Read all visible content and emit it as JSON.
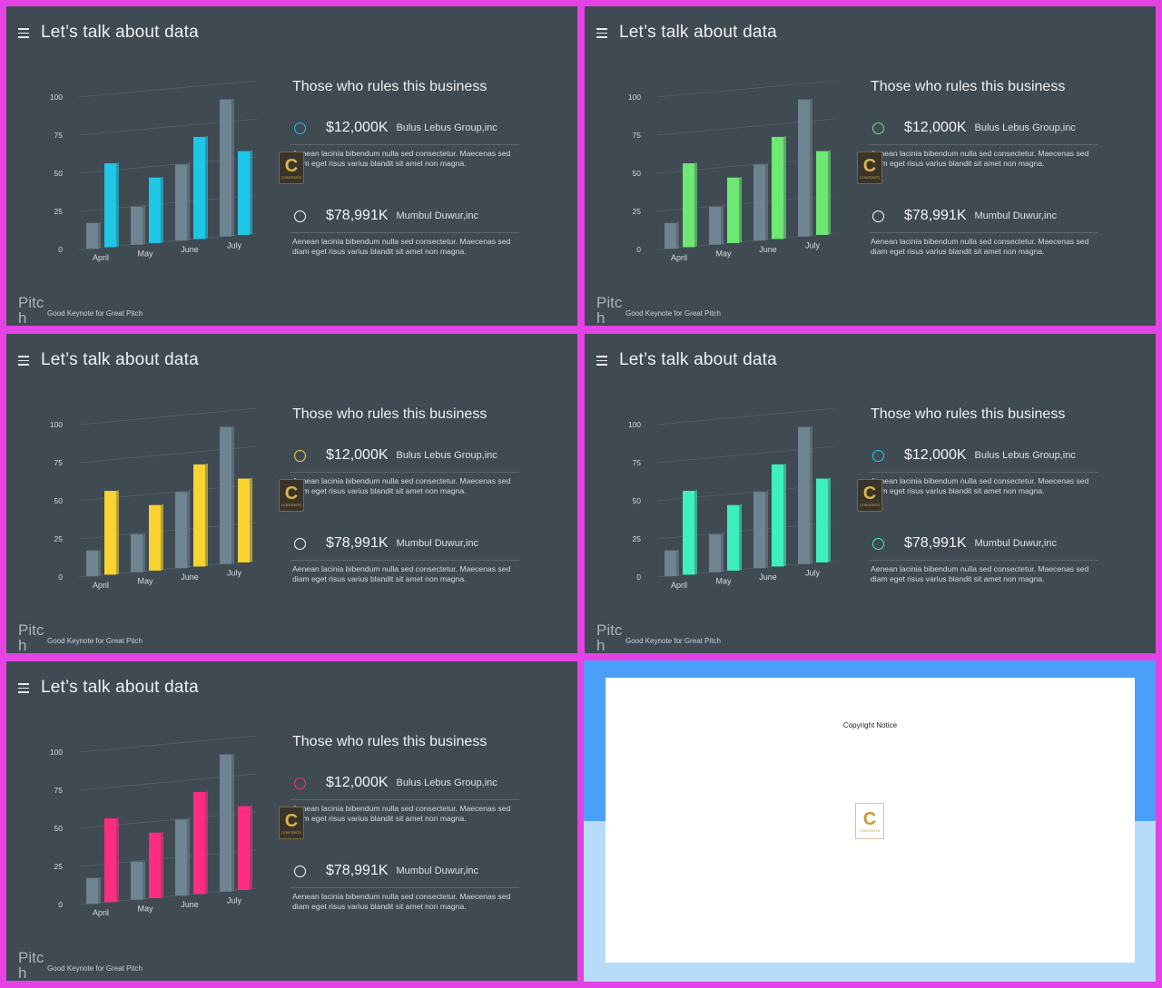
{
  "slides": [
    {
      "accent": "#1fc7e6",
      "ring1": "#1fc7e6",
      "ring2": "#ffffff"
    },
    {
      "accent": "#6de872",
      "ring1": "#6de872",
      "ring2": "#ffffff"
    },
    {
      "accent": "#f9d430",
      "ring1": "#f9d430",
      "ring2": "#ffffff"
    },
    {
      "accent": "#3ef0c0",
      "ring1": "#1fc7e6",
      "ring2": "#3ef0c0"
    },
    {
      "accent": "#ff2d82",
      "ring1": "#ff2d82",
      "ring2": "#ffffff"
    }
  ],
  "common": {
    "title": "Let’s talk about data",
    "panel_title": "Those who rules this business",
    "entries": [
      {
        "amount": "$12,000K",
        "company": "Bulus Lebus Group,inc",
        "desc": "Aenean lacinia bibendum nulla sed consectetur. Maecenas sed diam eget risus varius blandit sit amet non magna."
      },
      {
        "amount": "$78,991K",
        "company": "Mumbul Duwur,inc",
        "desc": "Aenean lacinia bibendum nulla sed consectetur. Maecenas sed diam eget risus varius blandit sit amet non magna."
      }
    ],
    "footer_brand": "Pitch",
    "footer_tag": "Good Keynote for Great Pitch",
    "watermark_letter": "C",
    "watermark_text": "CONTENTS"
  },
  "chart_data": {
    "type": "bar",
    "categories": [
      "April",
      "May",
      "June",
      "July"
    ],
    "yticks": [
      "0",
      "25",
      "50",
      "75",
      "100"
    ],
    "ylim": [
      0,
      100
    ],
    "series": [
      {
        "values": [
          17,
          25,
          50,
          90
        ],
        "color": "#6e8490"
      },
      {
        "values": [
          55,
          43,
          67,
          55
        ]
      }
    ]
  },
  "copyright": {
    "text": "Copyright Notice",
    "logo_letter": "C",
    "logo_text": "CONTENTS"
  }
}
